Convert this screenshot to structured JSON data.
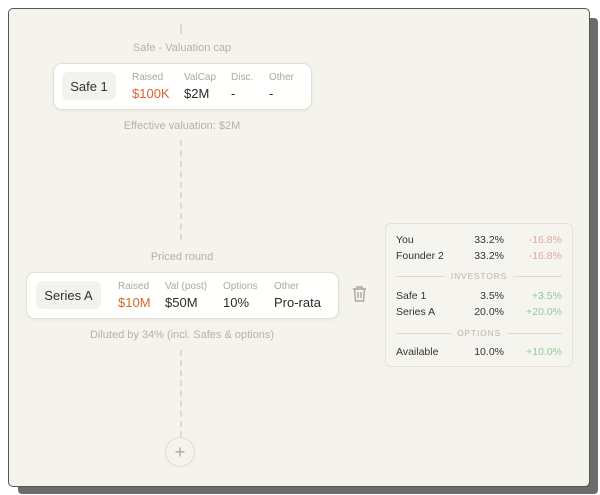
{
  "flow": {
    "safe_round": {
      "type_label": "Safe - Valuation cap",
      "name": "Safe 1",
      "fields": [
        {
          "label": "Raised",
          "value": "$100K"
        },
        {
          "label": "ValCap",
          "value": "$2M"
        },
        {
          "label": "Disc.",
          "value": "-"
        },
        {
          "label": "Other",
          "value": "-"
        }
      ],
      "note": "Effective valuation: $2M"
    },
    "priced_round": {
      "type_label": "Priced round",
      "name": "Series A",
      "fields": [
        {
          "label": "Raised",
          "value": "$10M"
        },
        {
          "label": "Val (post)",
          "value": "$50M"
        },
        {
          "label": "Options",
          "value": "10%"
        },
        {
          "label": "Other",
          "value": "Pro-rata"
        }
      ],
      "note": "Diluted by 34% (incl. Safes & options)",
      "delete_icon": "trash-icon"
    },
    "add_icon": "plus-icon"
  },
  "cap_table": {
    "founders": [
      {
        "name": "You",
        "percent": "33.2%",
        "change": "-16.8%"
      },
      {
        "name": "Founder 2",
        "percent": "33.2%",
        "change": "-16.8%"
      }
    ],
    "investors_heading": "INVESTORS",
    "investors": [
      {
        "name": "Safe 1",
        "percent": "3.5%",
        "change": "+3.5%"
      },
      {
        "name": "Series A",
        "percent": "20.0%",
        "change": "+20.0%"
      }
    ],
    "options_heading": "OPTIONS",
    "options": [
      {
        "name": "Available",
        "percent": "10.0%",
        "change": "+10.0%"
      }
    ]
  },
  "colors": {
    "accent": "#d8662f",
    "negative": "#e4a8a0",
    "positive": "#8fcb9b",
    "background": "#f4f3ec"
  }
}
